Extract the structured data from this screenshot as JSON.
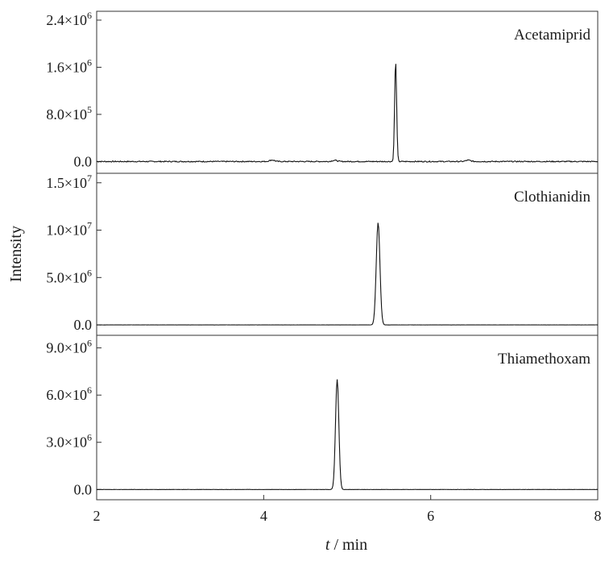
{
  "chart_data": {
    "type": "line",
    "shared_x": {
      "label_italic": "t",
      "label_rest": " / min",
      "xlim": [
        2,
        8
      ],
      "ticks": [
        2,
        4,
        6,
        8
      ],
      "tick_labels": [
        "2",
        "4",
        "6",
        "8"
      ]
    },
    "ylabel": "Intensity",
    "panels": [
      {
        "name": "Acetamiprid",
        "ylim": [
          -200000,
          2550000
        ],
        "ticks": [
          0,
          800000,
          1600000,
          2400000
        ],
        "tick_labels": [
          {
            "mant": "0.0",
            "exp": ""
          },
          {
            "mant": "8.0×10",
            "exp": "5"
          },
          {
            "mant": "1.6×10",
            "exp": "6"
          },
          {
            "mant": "2.4×10",
            "exp": "6"
          }
        ],
        "peak_time": 5.58,
        "peak_height": 1700000,
        "peak_sigma": 0.012,
        "noise": 18000,
        "baseline_events": [
          {
            "t": 4.1,
            "h": 25000
          },
          {
            "t": 4.85,
            "h": 20000
          },
          {
            "t": 6.45,
            "h": 22000
          }
        ]
      },
      {
        "name": "Clothianidin",
        "ylim": [
          -1100000,
          16000000
        ],
        "ticks": [
          0,
          5000000,
          10000000,
          15000000
        ],
        "tick_labels": [
          {
            "mant": "0.0",
            "exp": ""
          },
          {
            "mant": "5.0×10",
            "exp": "6"
          },
          {
            "mant": "1.0×10",
            "exp": "7"
          },
          {
            "mant": "1.5×10",
            "exp": "7"
          }
        ],
        "peak_time": 5.37,
        "peak_height": 10800000,
        "peak_sigma": 0.022,
        "noise": 12000,
        "baseline_events": []
      },
      {
        "name": "Thiamethoxam",
        "ylim": [
          -650000,
          9800000
        ],
        "ticks": [
          0,
          3000000,
          6000000,
          9000000
        ],
        "tick_labels": [
          {
            "mant": "0.0",
            "exp": ""
          },
          {
            "mant": "3.0×10",
            "exp": "6"
          },
          {
            "mant": "6.0×10",
            "exp": "6"
          },
          {
            "mant": "9.0×10",
            "exp": "6"
          }
        ],
        "peak_time": 4.88,
        "peak_height": 7000000,
        "peak_sigma": 0.02,
        "noise": 10000,
        "baseline_events": []
      }
    ],
    "grid": false,
    "legend": "none"
  }
}
